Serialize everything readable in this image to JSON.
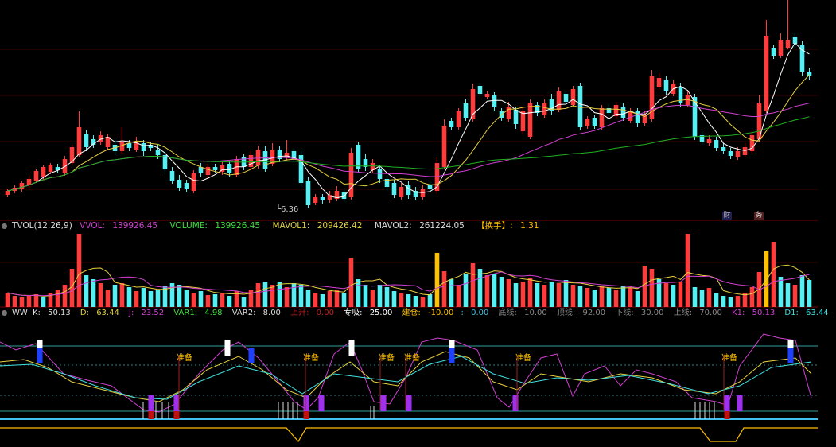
{
  "colors": {
    "up": "#ff3b3b",
    "down": "#54f0f4",
    "ma_white": "#ffffff",
    "ma_yellow": "#e8d040",
    "ma_magenta": "#d040d0",
    "ma_green": "#20b020",
    "hl": "#ffc000"
  },
  "price_panel": {
    "low_marker": "6.36",
    "tag_left": "财",
    "tag_right": "务"
  },
  "tvol": {
    "name": "TVOL(12,26,9)",
    "vvol_label": "VVOL:",
    "vvol": "139926.45",
    "volume_label": "VOLUME:",
    "volume": "139926.45",
    "mavol1_label": "MAVOL1:",
    "mavol1": "209426.42",
    "mavol2_label": "MAVOL2:",
    "mavol2": "261224.05",
    "turnover_label": "【换手】:",
    "turnover": "1.31"
  },
  "ww": {
    "name": "WW",
    "k_label": "K:",
    "k": "50.13",
    "d_label": "D:",
    "d": "63.44",
    "j_label": "J:",
    "j": "23.52",
    "var1_label": "VAR1:",
    "var1": "4.98",
    "var2_label": "VAR2:",
    "var2": "8.00",
    "up_label": "上升:",
    "up": "0.00",
    "zx_label": "专吸:",
    "zx": "25.00",
    "jc_label": "建仓:",
    "jc": "-10.00",
    "sep": ":",
    "jc2": "0.00",
    "dx_label": "底线:",
    "dx": "10.00",
    "dingx_label": "顶线:",
    "dingx": "92.00",
    "xx_label": "下线:",
    "xx": "30.00",
    "sx_label": "上线:",
    "sx": "70.00",
    "k1_label": "K1:",
    "k1": "50.13",
    "d1_label": "D1:",
    "d1": "63.44",
    "ready": "准备"
  },
  "price_bars": [
    [
      "u",
      245,
      240,
      238,
      248
    ],
    [
      "u",
      240,
      236,
      233,
      243
    ],
    [
      "u",
      238,
      230,
      228,
      241
    ],
    [
      "u",
      232,
      225,
      221,
      236
    ],
    [
      "u",
      228,
      215,
      212,
      230
    ],
    [
      "u",
      222,
      210,
      208,
      226
    ],
    [
      "u",
      216,
      208,
      205,
      219
    ],
    [
      "d",
      210,
      214,
      206,
      218
    ],
    [
      "u",
      218,
      200,
      196,
      221
    ],
    [
      "u",
      205,
      185,
      182,
      208
    ],
    [
      "u",
      195,
      160,
      140,
      198
    ],
    [
      "d",
      168,
      185,
      163,
      190
    ],
    [
      "d",
      182,
      175,
      170,
      186
    ],
    [
      "u",
      178,
      170,
      165,
      182
    ],
    [
      "u",
      185,
      172,
      168,
      188
    ],
    [
      "d",
      182,
      190,
      175,
      195
    ],
    [
      "u",
      190,
      178,
      160,
      193
    ],
    [
      "d",
      186,
      180,
      176,
      190
    ],
    [
      "u",
      188,
      178,
      172,
      191
    ],
    [
      "d",
      180,
      190,
      176,
      196
    ],
    [
      "d",
      182,
      186,
      178,
      190
    ],
    [
      "d",
      188,
      195,
      182,
      200
    ],
    [
      "d",
      195,
      213,
      190,
      217
    ],
    [
      "d",
      215,
      228,
      210,
      231
    ],
    [
      "d",
      226,
      236,
      220,
      240
    ],
    [
      "d",
      230,
      238,
      226,
      242
    ],
    [
      "u",
      240,
      218,
      214,
      243
    ],
    [
      "d",
      210,
      218,
      205,
      222
    ],
    [
      "u",
      220,
      210,
      206,
      224
    ],
    [
      "d",
      210,
      214,
      206,
      218
    ],
    [
      "u",
      216,
      207,
      202,
      220
    ],
    [
      "d",
      206,
      218,
      202,
      222
    ],
    [
      "u",
      220,
      200,
      196,
      223
    ],
    [
      "d",
      198,
      210,
      194,
      214
    ],
    [
      "u",
      210,
      195,
      190,
      214
    ],
    [
      "u",
      208,
      188,
      183,
      212
    ],
    [
      "d",
      190,
      212,
      184,
      216
    ],
    [
      "u",
      206,
      188,
      180,
      209
    ],
    [
      "d",
      188,
      200,
      184,
      204
    ],
    [
      "u",
      198,
      192,
      176,
      202
    ],
    [
      "d",
      190,
      200,
      186,
      204
    ],
    [
      "d",
      195,
      230,
      190,
      235
    ],
    [
      "d",
      228,
      258,
      222,
      262
    ],
    [
      "u",
      255,
      248,
      244,
      258
    ],
    [
      "d",
      248,
      252,
      244,
      256
    ],
    [
      "u",
      252,
      245,
      240,
      255
    ],
    [
      "u",
      250,
      240,
      234,
      253
    ],
    [
      "d",
      242,
      250,
      238,
      254
    ],
    [
      "u",
      248,
      192,
      186,
      251
    ],
    [
      "d",
      182,
      212,
      178,
      216
    ],
    [
      "d",
      200,
      210,
      194,
      215
    ],
    [
      "u",
      214,
      205,
      200,
      218
    ],
    [
      "d",
      212,
      225,
      208,
      230
    ],
    [
      "d",
      225,
      235,
      220,
      240
    ],
    [
      "d",
      230,
      245,
      226,
      249
    ],
    [
      "u",
      248,
      235,
      230,
      251
    ],
    [
      "d",
      232,
      245,
      228,
      250
    ],
    [
      "d",
      240,
      248,
      235,
      252
    ],
    [
      "u",
      248,
      238,
      232,
      251
    ],
    [
      "d",
      232,
      238,
      228,
      242
    ],
    [
      "u",
      240,
      205,
      198,
      243
    ],
    [
      "u",
      210,
      158,
      150,
      213
    ],
    [
      "d",
      152,
      160,
      148,
      164
    ],
    [
      "u",
      160,
      140,
      136,
      163
    ],
    [
      "d",
      130,
      148,
      125,
      152
    ],
    [
      "u",
      150,
      112,
      105,
      153
    ],
    [
      "d",
      108,
      118,
      104,
      122
    ],
    [
      "u",
      122,
      118,
      114,
      125
    ],
    [
      "d",
      120,
      135,
      116,
      140
    ],
    [
      "d",
      140,
      148,
      136,
      152
    ],
    [
      "u",
      150,
      135,
      128,
      153
    ],
    [
      "d",
      138,
      156,
      134,
      162
    ],
    [
      "u",
      165,
      140,
      134,
      168
    ],
    [
      "u",
      172,
      130,
      125,
      175
    ],
    [
      "d",
      132,
      142,
      128,
      146
    ],
    [
      "u",
      145,
      130,
      125,
      148
    ],
    [
      "d",
      125,
      140,
      118,
      144
    ],
    [
      "u",
      138,
      115,
      110,
      141
    ],
    [
      "d",
      118,
      128,
      114,
      132
    ],
    [
      "u",
      132,
      112,
      108,
      135
    ],
    [
      "d",
      108,
      160,
      104,
      164
    ],
    [
      "u",
      158,
      150,
      146,
      162
    ],
    [
      "d",
      148,
      158,
      144,
      162
    ],
    [
      "u",
      160,
      136,
      132,
      163
    ],
    [
      "d",
      136,
      142,
      130,
      146
    ],
    [
      "u",
      146,
      132,
      128,
      149
    ],
    [
      "d",
      134,
      148,
      130,
      152
    ],
    [
      "u",
      152,
      140,
      136,
      155
    ],
    [
      "d",
      140,
      155,
      136,
      160
    ],
    [
      "u",
      155,
      145,
      140,
      158
    ],
    [
      "u",
      150,
      95,
      88,
      153
    ],
    [
      "u",
      110,
      98,
      92,
      113
    ],
    [
      "d",
      100,
      115,
      96,
      120
    ],
    [
      "u",
      118,
      105,
      100,
      121
    ],
    [
      "d",
      110,
      130,
      104,
      135
    ],
    [
      "u",
      132,
      120,
      115,
      135
    ],
    [
      "d",
      122,
      172,
      118,
      176
    ],
    [
      "d",
      170,
      178,
      165,
      182
    ],
    [
      "u",
      180,
      175,
      170,
      183
    ],
    [
      "d",
      176,
      186,
      172,
      190
    ],
    [
      "d",
      185,
      190,
      180,
      194
    ],
    [
      "d",
      190,
      196,
      186,
      200
    ],
    [
      "u",
      198,
      190,
      185,
      201
    ],
    [
      "u",
      195,
      185,
      180,
      198
    ],
    [
      "u",
      190,
      170,
      165,
      193
    ],
    [
      "u",
      175,
      130,
      120,
      178
    ],
    [
      "u",
      140,
      45,
      25,
      142
    ],
    [
      "d",
      60,
      70,
      56,
      74
    ],
    [
      "u",
      70,
      50,
      42,
      73
    ],
    [
      "u",
      60,
      50,
      0,
      62
    ],
    [
      "d",
      46,
      55,
      42,
      60
    ],
    [
      "d",
      56,
      90,
      52,
      95
    ],
    [
      "d",
      90,
      95,
      86,
      100
    ]
  ],
  "vol_bars": [
    [
      "u",
      18
    ],
    [
      "u",
      14
    ],
    [
      "u",
      12
    ],
    [
      "u",
      14
    ],
    [
      "u",
      16
    ],
    [
      "d",
      12
    ],
    [
      "u",
      18
    ],
    [
      "u",
      22
    ],
    [
      "u",
      28
    ],
    [
      "u",
      48
    ],
    [
      "u",
      92
    ],
    [
      "d",
      40
    ],
    [
      "d",
      35
    ],
    [
      "u",
      30
    ],
    [
      "u",
      22
    ],
    [
      "d",
      28
    ],
    [
      "u",
      30
    ],
    [
      "d",
      25
    ],
    [
      "u",
      20
    ],
    [
      "d",
      24
    ],
    [
      "d",
      20
    ],
    [
      "d",
      22
    ],
    [
      "d",
      26
    ],
    [
      "d",
      30
    ],
    [
      "d",
      28
    ],
    [
      "d",
      22
    ],
    [
      "u",
      18
    ],
    [
      "d",
      20
    ],
    [
      "u",
      15
    ],
    [
      "d",
      16
    ],
    [
      "u",
      18
    ],
    [
      "d",
      14
    ],
    [
      "u",
      20
    ],
    [
      "d",
      12
    ],
    [
      "u",
      22
    ],
    [
      "u",
      30
    ],
    [
      "d",
      32
    ],
    [
      "u",
      28
    ],
    [
      "d",
      32
    ],
    [
      "u",
      25
    ],
    [
      "d",
      30
    ],
    [
      "d",
      28
    ],
    [
      "d",
      22
    ],
    [
      "u",
      18
    ],
    [
      "d",
      16
    ],
    [
      "u",
      20
    ],
    [
      "u",
      22
    ],
    [
      "d",
      18
    ],
    [
      "u",
      62
    ],
    [
      "d",
      35
    ],
    [
      "d",
      28
    ],
    [
      "u",
      22
    ],
    [
      "d",
      28
    ],
    [
      "d",
      25
    ],
    [
      "d",
      20
    ],
    [
      "u",
      18
    ],
    [
      "d",
      16
    ],
    [
      "d",
      14
    ],
    [
      "u",
      12
    ],
    [
      "d",
      16
    ],
    [
      "h",
      68
    ],
    [
      "u",
      45
    ],
    [
      "d",
      35
    ],
    [
      "u",
      28
    ],
    [
      "d",
      42
    ],
    [
      "u",
      55
    ],
    [
      "d",
      48
    ],
    [
      "u",
      40
    ],
    [
      "d",
      42
    ],
    [
      "d",
      38
    ],
    [
      "u",
      35
    ],
    [
      "d",
      30
    ],
    [
      "u",
      32
    ],
    [
      "u",
      36
    ],
    [
      "d",
      30
    ],
    [
      "u",
      28
    ],
    [
      "d",
      32
    ],
    [
      "u",
      30
    ],
    [
      "d",
      34
    ],
    [
      "u",
      28
    ],
    [
      "d",
      26
    ],
    [
      "u",
      24
    ],
    [
      "d",
      22
    ],
    [
      "u",
      26
    ],
    [
      "d",
      24
    ],
    [
      "u",
      22
    ],
    [
      "d",
      26
    ],
    [
      "u",
      24
    ],
    [
      "d",
      20
    ],
    [
      "u",
      52
    ],
    [
      "u",
      48
    ],
    [
      "d",
      35
    ],
    [
      "u",
      30
    ],
    [
      "d",
      28
    ],
    [
      "u",
      32
    ],
    [
      "u",
      92
    ],
    [
      "d",
      25
    ],
    [
      "d",
      22
    ],
    [
      "u",
      24
    ],
    [
      "d",
      18
    ],
    [
      "d",
      14
    ],
    [
      "d",
      12
    ],
    [
      "u",
      14
    ],
    [
      "u",
      18
    ],
    [
      "u",
      25
    ],
    [
      "u",
      44
    ],
    [
      "h",
      70
    ],
    [
      "u",
      82
    ],
    [
      "d",
      38
    ],
    [
      "d",
      30
    ],
    [
      "u",
      28
    ],
    [
      "d",
      40
    ],
    [
      "d",
      34
    ]
  ]
}
